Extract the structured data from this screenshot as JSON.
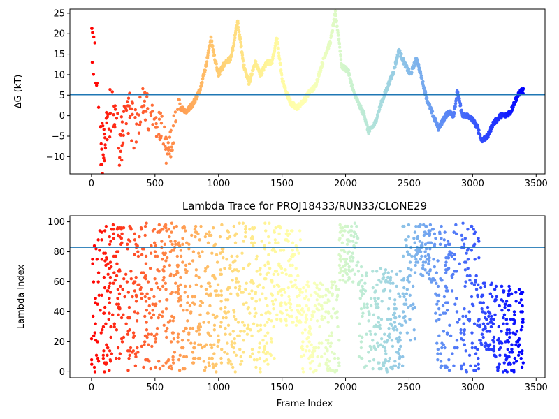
{
  "chart_data": [
    {
      "type": "scatter",
      "title": "",
      "xlabel": "",
      "ylabel": "ΔG (kT)",
      "xlim": [
        -170,
        3570
      ],
      "ylim": [
        -14.2,
        26
      ],
      "xticks": [
        0,
        500,
        1000,
        1500,
        2000,
        2500,
        3000,
        3500
      ],
      "yticks": [
        -10,
        -5,
        0,
        5,
        10,
        15,
        20,
        25
      ],
      "hline": 5.1,
      "hline_color": "#1f77b4",
      "colormap": "rainbow (red at frame 0 → violet at final frame)",
      "x_max_frame": 3400,
      "trend": [
        [
          0,
          20
        ],
        [
          20,
          13
        ],
        [
          50,
          6
        ],
        [
          80,
          -8
        ],
        [
          120,
          -3
        ],
        [
          170,
          3
        ],
        [
          220,
          -8
        ],
        [
          280,
          2
        ],
        [
          330,
          -3
        ],
        [
          380,
          1
        ],
        [
          420,
          3
        ],
        [
          470,
          -2
        ],
        [
          520,
          -1
        ],
        [
          560,
          -4
        ],
        [
          600,
          -11
        ],
        [
          650,
          -3
        ],
        [
          700,
          2
        ],
        [
          750,
          1
        ],
        [
          800,
          3
        ],
        [
          850,
          6
        ],
        [
          900,
          12
        ],
        [
          940,
          19
        ],
        [
          970,
          14
        ],
        [
          1000,
          10
        ],
        [
          1050,
          13
        ],
        [
          1100,
          14
        ],
        [
          1150,
          23
        ],
        [
          1200,
          12
        ],
        [
          1240,
          8
        ],
        [
          1290,
          13
        ],
        [
          1330,
          10
        ],
        [
          1380,
          13
        ],
        [
          1420,
          13
        ],
        [
          1460,
          19
        ],
        [
          1500,
          9
        ],
        [
          1540,
          5
        ],
        [
          1570,
          3
        ],
        [
          1620,
          2
        ],
        [
          1680,
          4
        ],
        [
          1720,
          6
        ],
        [
          1760,
          7
        ],
        [
          1800,
          11
        ],
        [
          1840,
          15
        ],
        [
          1880,
          18
        ],
        [
          1920,
          25
        ],
        [
          1950,
          18
        ],
        [
          1970,
          12
        ],
        [
          2020,
          11
        ],
        [
          2060,
          6
        ],
        [
          2100,
          3
        ],
        [
          2150,
          0
        ],
        [
          2180,
          -4
        ],
        [
          2230,
          -2
        ],
        [
          2280,
          3
        ],
        [
          2330,
          7
        ],
        [
          2380,
          11
        ],
        [
          2420,
          16
        ],
        [
          2460,
          13
        ],
        [
          2510,
          10
        ],
        [
          2560,
          14
        ],
        [
          2600,
          9
        ],
        [
          2640,
          4
        ],
        [
          2690,
          0
        ],
        [
          2730,
          -3
        ],
        [
          2770,
          -1
        ],
        [
          2810,
          1
        ],
        [
          2850,
          0
        ],
        [
          2880,
          6
        ],
        [
          2920,
          0
        ],
        [
          2960,
          0
        ],
        [
          3000,
          -1
        ],
        [
          3040,
          -3
        ],
        [
          3070,
          -6
        ],
        [
          3120,
          -5
        ],
        [
          3160,
          -2
        ],
        [
          3220,
          0
        ],
        [
          3260,
          0
        ],
        [
          3300,
          1
        ],
        [
          3340,
          4
        ],
        [
          3380,
          6
        ],
        [
          3400,
          6
        ]
      ]
    },
    {
      "type": "scatter",
      "title": "Lambda Trace for PROJ18433/RUN33/CLONE29",
      "xlabel": "Frame Index",
      "ylabel": "Lambda Index",
      "xlim": [
        -170,
        3570
      ],
      "ylim": [
        -4,
        104
      ],
      "xticks": [
        0,
        500,
        1000,
        1500,
        2000,
        2500,
        3000,
        3500
      ],
      "yticks": [
        0,
        20,
        40,
        60,
        80,
        100
      ],
      "hline": 83,
      "hline_color": "#1f77b4",
      "colormap": "rainbow (red at frame 0 → violet at final frame)",
      "x_max_frame": 3400,
      "bands": [
        [
          0,
          150,
          0,
          99
        ],
        [
          150,
          700,
          0,
          99
        ],
        [
          700,
          1000,
          0,
          99
        ],
        [
          1000,
          1450,
          0,
          99
        ],
        [
          1450,
          1650,
          30,
          99
        ],
        [
          1650,
          1950,
          0,
          60
        ],
        [
          1950,
          2100,
          60,
          99
        ],
        [
          2100,
          2450,
          0,
          70
        ],
        [
          2450,
          2550,
          20,
          99
        ],
        [
          2550,
          2700,
          60,
          99
        ],
        [
          2700,
          3050,
          0,
          99
        ],
        [
          3050,
          3150,
          15,
          60
        ],
        [
          3150,
          3400,
          0,
          58
        ]
      ]
    }
  ]
}
